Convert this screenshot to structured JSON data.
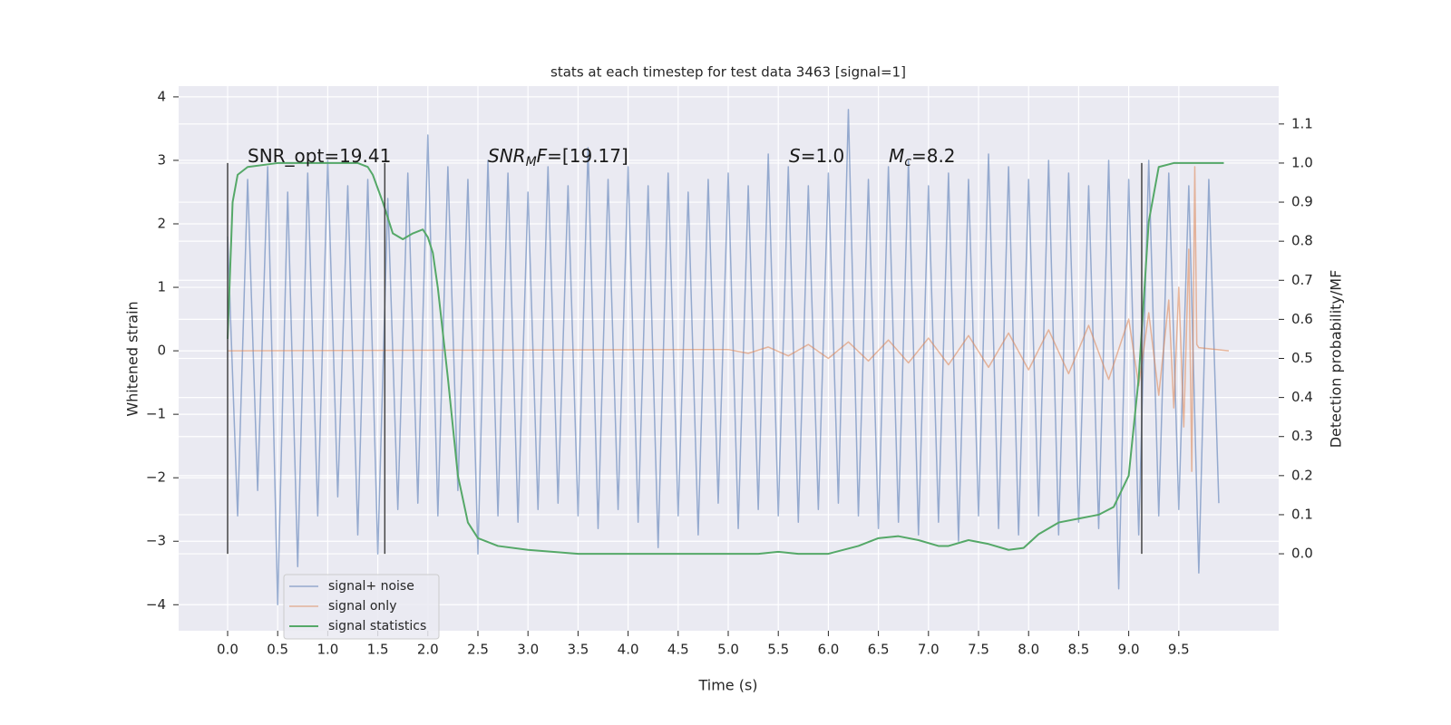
{
  "chart_data": {
    "type": "line",
    "title": "stats at each timestep for test data 3463 [signal=1]",
    "xlabel": "Time (s)",
    "ylabel": "Whitened strain",
    "y2label": "Detection probability/MF",
    "xlim": [
      -0.489,
      10.498
    ],
    "ylim": [
      -4.41,
      4.17
    ],
    "y2lim": [
      -0.197,
      1.197
    ],
    "xticks": [
      {
        "value": 0,
        "label": "0.0"
      },
      0.5,
      {
        "value": 1,
        "label": "1.0"
      },
      1.5,
      {
        "value": 2,
        "label": "2.0"
      },
      2.5,
      {
        "value": 3,
        "label": "3.0"
      },
      3.5,
      {
        "value": 4,
        "label": "4.0"
      },
      4.5,
      {
        "value": 5,
        "label": "5.0"
      },
      5.5,
      {
        "value": 6,
        "label": "6.0"
      },
      6.5,
      {
        "value": 7,
        "label": "7.0"
      },
      7.5,
      {
        "value": 8,
        "label": "8.0"
      },
      8.5,
      {
        "value": 9,
        "label": "9.0"
      },
      9.5
    ],
    "yticks": [
      {
        "value": -4,
        "label": "−4"
      },
      {
        "value": -3,
        "label": "−3"
      },
      {
        "value": -2,
        "label": "−2"
      },
      {
        "value": -1,
        "label": "−1"
      },
      0,
      1,
      2,
      3,
      4
    ],
    "y2ticks": [
      {
        "value": 0,
        "label": "0.0"
      },
      0.1,
      0.2,
      0.3,
      0.4,
      0.5,
      0.6,
      0.7,
      0.8,
      0.9,
      {
        "value": 1,
        "label": "1.0"
      },
      1.1
    ],
    "grid": true,
    "legend": "lower left",
    "series": [
      {
        "name": "signal+ noise",
        "color": "#4c72b0",
        "x": [
          0.0,
          0.1,
          0.2,
          0.3,
          0.4,
          0.5,
          0.6,
          0.7,
          0.8,
          0.9,
          1.0,
          1.1,
          1.2,
          1.3,
          1.4,
          1.5,
          1.6,
          1.7,
          1.8,
          1.9,
          2.0,
          2.1,
          2.2,
          2.3,
          2.4,
          2.5,
          2.6,
          2.7,
          2.8,
          2.9,
          3.0,
          3.1,
          3.2,
          3.3,
          3.4,
          3.5,
          3.6,
          3.7,
          3.8,
          3.9,
          4.0,
          4.1,
          4.2,
          4.3,
          4.4,
          4.5,
          4.6,
          4.7,
          4.8,
          4.9,
          5.0,
          5.1,
          5.2,
          5.3,
          5.4,
          5.5,
          5.6,
          5.7,
          5.8,
          5.9,
          6.0,
          6.1,
          6.2,
          6.3,
          6.4,
          6.5,
          6.6,
          6.7,
          6.8,
          6.9,
          7.0,
          7.1,
          7.2,
          7.3,
          7.4,
          7.5,
          7.6,
          7.7,
          7.8,
          7.9,
          8.0,
          8.1,
          8.2,
          8.3,
          8.4,
          8.5,
          8.6,
          8.7,
          8.8,
          8.9,
          9.0,
          9.1,
          9.2,
          9.3,
          9.4,
          9.5,
          9.6,
          9.7,
          9.8,
          9.9
        ],
        "values": [
          1.8,
          -2.6,
          2.7,
          -2.2,
          2.9,
          -4.0,
          2.5,
          -3.4,
          2.8,
          -2.6,
          3.0,
          -2.3,
          2.6,
          -2.9,
          2.7,
          -3.2,
          2.4,
          -2.5,
          2.8,
          -2.4,
          3.4,
          -2.6,
          2.9,
          -2.2,
          2.7,
          -3.2,
          3.0,
          -2.6,
          2.8,
          -2.7,
          2.5,
          -2.5,
          2.9,
          -2.4,
          2.6,
          -2.6,
          3.2,
          -2.8,
          2.7,
          -2.5,
          2.9,
          -2.7,
          2.6,
          -3.1,
          2.8,
          -2.6,
          2.5,
          -2.9,
          2.7,
          -2.4,
          2.8,
          -2.8,
          2.6,
          -2.5,
          3.1,
          -2.6,
          2.9,
          -2.7,
          2.6,
          -2.5,
          2.8,
          -2.4,
          3.8,
          -2.6,
          2.7,
          -2.8,
          2.9,
          -2.7,
          3.0,
          -2.9,
          2.6,
          -2.7,
          2.8,
          -3.0,
          2.7,
          -2.6,
          3.1,
          -2.8,
          2.9,
          -2.9,
          2.7,
          -2.6,
          3.0,
          -2.9,
          2.8,
          -2.7,
          2.6,
          -2.8,
          3.0,
          -3.75,
          2.7,
          -2.9,
          3.0,
          -2.6,
          2.8,
          -2.5,
          2.6,
          -3.5,
          2.7,
          -2.4
        ]
      },
      {
        "name": "signal only",
        "color": "#dd8452",
        "x": [
          0,
          5.0,
          5.2,
          5.4,
          5.6,
          5.8,
          6.0,
          6.2,
          6.4,
          6.6,
          6.8,
          7.0,
          7.2,
          7.4,
          7.6,
          7.8,
          8.0,
          8.2,
          8.4,
          8.6,
          8.8,
          9.0,
          9.1,
          9.2,
          9.3,
          9.4,
          9.45,
          9.5,
          9.55,
          9.6,
          9.63,
          9.66,
          9.68,
          9.7,
          10.0
        ],
        "values": [
          0,
          0.02,
          -0.04,
          0.06,
          -0.08,
          0.1,
          -0.12,
          0.14,
          -0.16,
          0.17,
          -0.19,
          0.2,
          -0.22,
          0.24,
          -0.26,
          0.28,
          -0.3,
          0.33,
          -0.36,
          0.4,
          -0.45,
          0.5,
          -0.55,
          0.6,
          -0.7,
          0.8,
          -0.9,
          1.0,
          -1.2,
          1.6,
          -1.9,
          2.9,
          0.1,
          0.05,
          0.0
        ]
      },
      {
        "name": "signal statistics",
        "color": "#55a868",
        "axis": "y2",
        "x": [
          0.0,
          0.05,
          0.1,
          0.2,
          0.5,
          1.0,
          1.3,
          1.4,
          1.45,
          1.55,
          1.65,
          1.75,
          1.85,
          1.95,
          2.0,
          2.05,
          2.1,
          2.2,
          2.3,
          2.4,
          2.5,
          2.7,
          3.0,
          3.5,
          4.0,
          4.5,
          5.0,
          5.3,
          5.5,
          5.7,
          6.0,
          6.3,
          6.5,
          6.7,
          6.9,
          7.1,
          7.2,
          7.4,
          7.6,
          7.8,
          7.95,
          8.1,
          8.3,
          8.5,
          8.7,
          8.85,
          9.0,
          9.1,
          9.2,
          9.3,
          9.45,
          9.95
        ],
        "values": [
          0.55,
          0.9,
          0.97,
          0.99,
          1.0,
          1.0,
          1.0,
          0.99,
          0.97,
          0.9,
          0.82,
          0.805,
          0.82,
          0.83,
          0.81,
          0.77,
          0.68,
          0.45,
          0.2,
          0.08,
          0.04,
          0.02,
          0.01,
          0.0,
          0.0,
          0.0,
          0.0,
          0.0,
          0.005,
          0.0,
          0.0,
          0.02,
          0.04,
          0.045,
          0.035,
          0.02,
          0.02,
          0.035,
          0.025,
          0.01,
          0.015,
          0.05,
          0.08,
          0.09,
          0.1,
          0.12,
          0.2,
          0.45,
          0.85,
          0.99,
          1.0,
          1.0
        ]
      }
    ],
    "vlines": {
      "x": [
        0,
        1.57,
        9.13
      ],
      "ymin": 0,
      "ymax": 1,
      "axis": "y2",
      "color": "#444444"
    },
    "annotations": [
      {
        "parts": [
          {
            "text": "SNR_opt=19.41",
            "style": "normal"
          }
        ]
      },
      {
        "parts": [
          {
            "text": "SNR",
            "style": "italic"
          },
          {
            "text": "M",
            "style": "sub"
          },
          {
            "text": "F",
            "style": "italic"
          },
          {
            "text": "=[19.17]",
            "style": "normal"
          }
        ]
      },
      {
        "parts": [
          {
            "text": "S",
            "style": "italic"
          },
          {
            "text": "=1.0",
            "style": "normal"
          }
        ]
      },
      {
        "parts": [
          {
            "text": "M",
            "style": "italic"
          },
          {
            "text": "c",
            "style": "sub"
          },
          {
            "text": "=8.2",
            "style": "normal"
          }
        ]
      }
    ]
  }
}
